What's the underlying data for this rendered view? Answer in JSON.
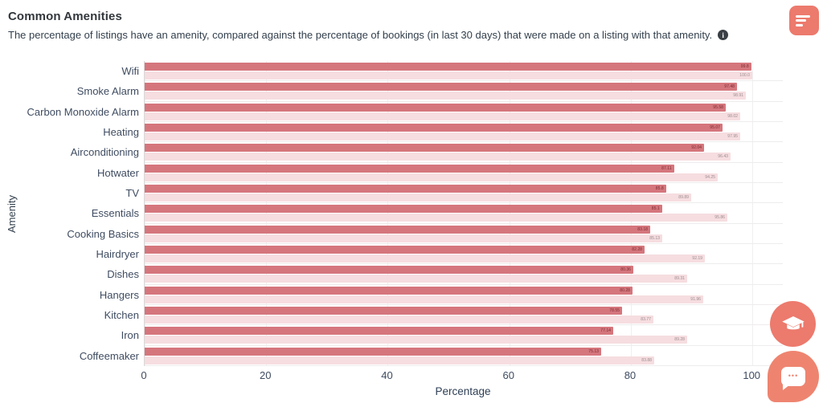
{
  "header": {
    "title": "Common Amenities",
    "subtitle": "The percentage of listings have an amenity, compared against the percentage of bookings (in last 30 days) that were made on a listing with that amenity.",
    "info_icon_glyph": "i"
  },
  "chart_data": {
    "type": "bar",
    "orientation": "horizontal",
    "title": "Common Amenities",
    "xlabel": "Percentage",
    "ylabel": "Amenity",
    "xlim": [
      0,
      105
    ],
    "xticks": [
      "0",
      "20",
      "40",
      "60",
      "80",
      "100"
    ],
    "grid": true,
    "legend": "none",
    "categories": [
      "Wifi",
      "Smoke Alarm",
      "Carbon Monoxide Alarm",
      "Heating",
      "Airconditioning",
      "Hotwater",
      "TV",
      "Essentials",
      "Cooking Basics",
      "Hairdryer",
      "Dishes",
      "Hangers",
      "Kitchen",
      "Iron",
      "Coffeemaker"
    ],
    "series": [
      {
        "name": "listings-with-amenity-pct",
        "color": "#d5767d",
        "label_color": "#7c2b31",
        "values": [
          "99.8",
          "97.48",
          "95.58",
          "95.07",
          "92.04",
          "87.11",
          "85.8",
          "85.1",
          "83.18",
          "82.28",
          "80.36",
          "80.28",
          "78.55",
          "77.14",
          "75.13"
        ]
      },
      {
        "name": "bookings-on-listings-with-amenity-pct",
        "color": "#f6dde0",
        "label_color": "#9c8d90",
        "values": [
          "100.0",
          "98.91",
          "98.02",
          "97.95",
          "96.43",
          "94.25",
          "89.89",
          "95.86",
          "85.13",
          "92.19",
          "89.31",
          "91.96",
          "83.77",
          "89.28",
          "83.88"
        ]
      }
    ]
  },
  "floating": {
    "chat_dots": "•••"
  },
  "colors": {
    "accent_coral": "#ec7a6d",
    "chat_coral": "#ee8470",
    "bar_dark": "#d5767d",
    "bar_light": "#f6dde0",
    "grid_line": "#f0eff0",
    "axis_text": "#3f4c61"
  }
}
